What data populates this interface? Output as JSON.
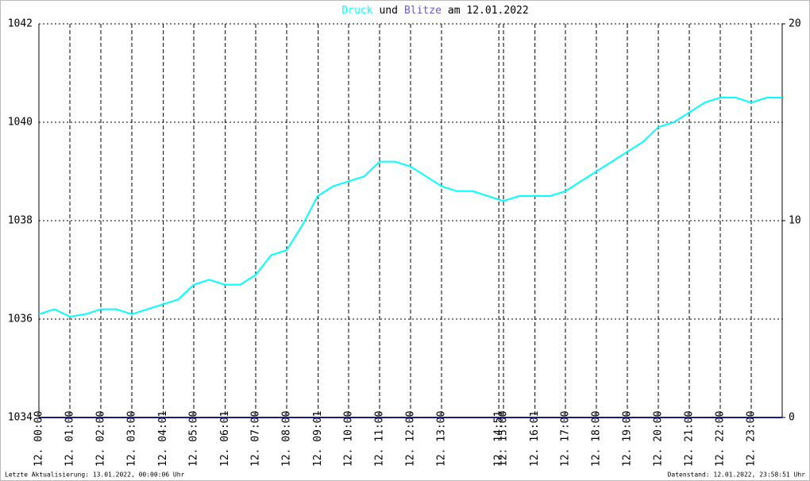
{
  "chart_data": {
    "type": "line",
    "title_date": "am 12.01.2022",
    "title_connector": "und",
    "x": [
      0,
      0.5,
      1,
      1.5,
      2,
      2.5,
      3,
      3.5,
      4,
      4.5,
      5,
      5.5,
      6,
      6.5,
      7,
      7.5,
      8,
      8.5,
      9,
      9.5,
      10,
      10.5,
      11,
      11.5,
      12,
      12.5,
      13,
      13.5,
      14,
      14.5,
      15,
      15.5,
      16,
      16.5,
      17,
      17.5,
      18,
      18.5,
      19,
      19.5,
      20,
      20.5,
      21,
      21.5,
      22,
      22.5,
      23,
      23.5,
      24
    ],
    "series": [
      {
        "name": "Druck",
        "color": "#00ffff",
        "values": [
          1036.1,
          1036.2,
          1036.05,
          1036.1,
          1036.2,
          1036.2,
          1036.1,
          1036.2,
          1036.3,
          1036.4,
          1036.7,
          1036.8,
          1036.7,
          1036.7,
          1036.9,
          1037.3,
          1037.4,
          1037.9,
          1038.5,
          1038.7,
          1038.8,
          1038.9,
          1039.2,
          1039.2,
          1039.1,
          1038.9,
          1038.7,
          1038.6,
          1038.6,
          1038.5,
          1038.4,
          1038.5,
          1038.5,
          1038.5,
          1038.6,
          1038.8,
          1039.0,
          1039.2,
          1039.4,
          1039.6,
          1039.9,
          1040.0,
          1040.2,
          1040.4,
          1040.5,
          1040.5,
          1040.4,
          1040.5,
          1040.5
        ]
      },
      {
        "name": "Blitze",
        "color": "#6a5acd",
        "line_color": "#1a1a80",
        "axis": "y2",
        "values": [
          0,
          0,
          0,
          0,
          0,
          0,
          0,
          0,
          0,
          0,
          0,
          0,
          0,
          0,
          0,
          0,
          0,
          0,
          0,
          0,
          0,
          0,
          0,
          0,
          0,
          0,
          0,
          0,
          0,
          0,
          0,
          0,
          0,
          0,
          0,
          0,
          0,
          0,
          0,
          0,
          0,
          0,
          0,
          0,
          0,
          0,
          0,
          0,
          0
        ]
      }
    ],
    "xlim": [
      0,
      24
    ],
    "xticks": [
      {
        "value": 0,
        "label": "12. 00:00"
      },
      {
        "value": 1,
        "label": "12. 01:00"
      },
      {
        "value": 2,
        "label": "12. 02:00"
      },
      {
        "value": 3,
        "label": "12. 03:00"
      },
      {
        "value": 4.0167,
        "label": "12. 04:01"
      },
      {
        "value": 5,
        "label": "12. 05:00"
      },
      {
        "value": 6.0167,
        "label": "12. 06:01"
      },
      {
        "value": 7,
        "label": "12. 07:00"
      },
      {
        "value": 8,
        "label": "12. 08:00"
      },
      {
        "value": 9.0167,
        "label": "12. 09:01"
      },
      {
        "value": 10,
        "label": "12. 10:00"
      },
      {
        "value": 11,
        "label": "12. 11:00"
      },
      {
        "value": 12,
        "label": "12. 12:00"
      },
      {
        "value": 13,
        "label": "12. 13:00"
      },
      {
        "value": 14.85,
        "label": "12. 14:51"
      },
      {
        "value": 15,
        "label": "12. 15:00"
      },
      {
        "value": 16.0167,
        "label": "12. 16:01"
      },
      {
        "value": 17,
        "label": "12. 17:00"
      },
      {
        "value": 18,
        "label": "12. 18:00"
      },
      {
        "value": 19,
        "label": "12. 19:00"
      },
      {
        "value": 20,
        "label": "12. 20:00"
      },
      {
        "value": 21,
        "label": "12. 21:00"
      },
      {
        "value": 22,
        "label": "12. 22:00"
      },
      {
        "value": 23,
        "label": "12. 23:00"
      }
    ],
    "ylim": [
      1034,
      1042
    ],
    "yticks": [
      1034,
      1036,
      1038,
      1040,
      1042
    ],
    "y2lim": [
      0,
      20
    ],
    "y2ticks": [
      0,
      10,
      20
    ],
    "grid": true,
    "footer_left": "Letzte Aktualisierung: 13.01.2022, 00:00:06 Uhr",
    "footer_right": "Datenstand: 12.01.2022, 23:58:51 Uhr"
  }
}
